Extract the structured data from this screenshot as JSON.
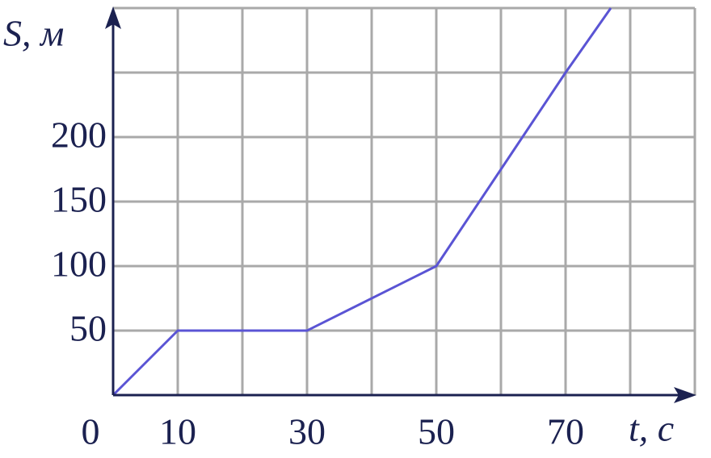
{
  "chart_data": {
    "type": "line",
    "x_label": "t, с",
    "y_label": "S, м",
    "x": [
      0,
      10,
      30,
      50,
      70,
      77
    ],
    "series": [
      {
        "color": "#5a54d4",
        "values": [
          0,
          50,
          50,
          100,
          250,
          300
        ]
      }
    ],
    "xlim": [
      0,
      90
    ],
    "ylim": [
      0,
      300
    ],
    "xticks": [
      0,
      10,
      30,
      50,
      70
    ],
    "yticks": [
      50,
      100,
      150,
      200
    ],
    "xgrid": [
      10,
      20,
      30,
      40,
      50,
      60,
      70,
      80,
      90
    ],
    "ygrid": [
      50,
      100,
      150,
      200,
      250,
      300
    ],
    "grid": true
  }
}
